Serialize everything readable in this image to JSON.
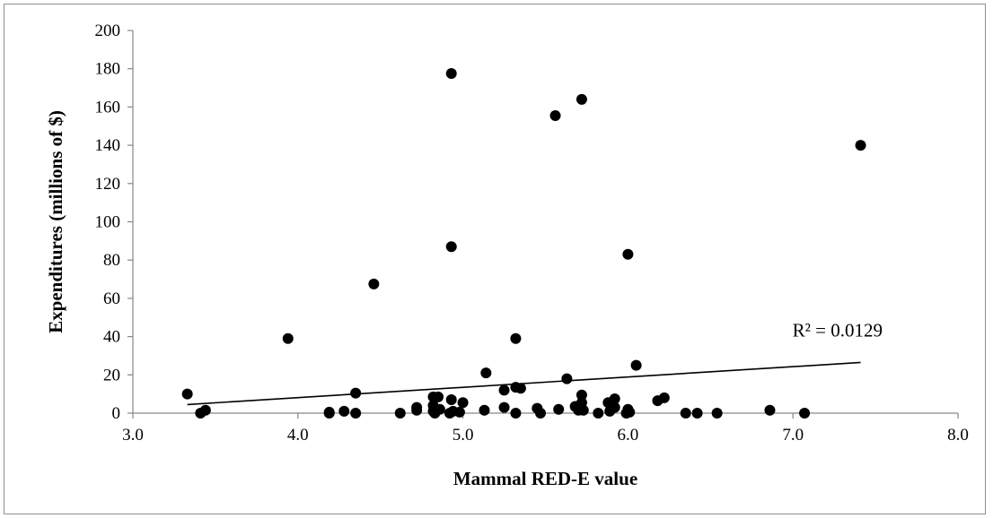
{
  "chart_data": {
    "type": "scatter",
    "xlabel": "Mammal RED-E value",
    "ylabel": "Expenditures (millions of $)",
    "xlim": [
      3.0,
      8.0
    ],
    "ylim": [
      0,
      200
    ],
    "x_ticks": [
      "3.0",
      "4.0",
      "5.0",
      "6.0",
      "7.0",
      "8.0"
    ],
    "y_ticks": [
      "0",
      "20",
      "40",
      "60",
      "80",
      "100",
      "120",
      "140",
      "160",
      "180",
      "200"
    ],
    "grid": false,
    "legend": false,
    "marker_color": "#000000",
    "points": [
      {
        "x": 3.33,
        "y": 10
      },
      {
        "x": 3.41,
        "y": 0
      },
      {
        "x": 3.44,
        "y": 1.5
      },
      {
        "x": 3.94,
        "y": 39
      },
      {
        "x": 4.19,
        "y": 0
      },
      {
        "x": 4.19,
        "y": 0.5
      },
      {
        "x": 4.28,
        "y": 1
      },
      {
        "x": 4.35,
        "y": 10.5
      },
      {
        "x": 4.35,
        "y": 0
      },
      {
        "x": 4.46,
        "y": 67.5
      },
      {
        "x": 4.62,
        "y": 0
      },
      {
        "x": 4.72,
        "y": 3
      },
      {
        "x": 4.72,
        "y": 1.5
      },
      {
        "x": 4.82,
        "y": 8.5
      },
      {
        "x": 4.82,
        "y": 4
      },
      {
        "x": 4.82,
        "y": 1
      },
      {
        "x": 4.83,
        "y": 0
      },
      {
        "x": 4.85,
        "y": 8.5
      },
      {
        "x": 4.86,
        "y": 2
      },
      {
        "x": 4.92,
        "y": 0
      },
      {
        "x": 4.93,
        "y": 177.5
      },
      {
        "x": 4.93,
        "y": 87
      },
      {
        "x": 4.93,
        "y": 7
      },
      {
        "x": 4.94,
        "y": 1
      },
      {
        "x": 4.98,
        "y": 0.5
      },
      {
        "x": 5.0,
        "y": 5.5
      },
      {
        "x": 5.13,
        "y": 1.5
      },
      {
        "x": 5.14,
        "y": 21
      },
      {
        "x": 5.25,
        "y": 12
      },
      {
        "x": 5.25,
        "y": 3
      },
      {
        "x": 5.32,
        "y": 39
      },
      {
        "x": 5.32,
        "y": 13.5
      },
      {
        "x": 5.32,
        "y": 0
      },
      {
        "x": 5.35,
        "y": 13
      },
      {
        "x": 5.45,
        "y": 2.5
      },
      {
        "x": 5.47,
        "y": 0
      },
      {
        "x": 5.56,
        "y": 155.5
      },
      {
        "x": 5.58,
        "y": 2
      },
      {
        "x": 5.63,
        "y": 18
      },
      {
        "x": 5.68,
        "y": 3.5
      },
      {
        "x": 5.7,
        "y": 1.5
      },
      {
        "x": 5.72,
        "y": 164
      },
      {
        "x": 5.72,
        "y": 9.5
      },
      {
        "x": 5.72,
        "y": 5.5
      },
      {
        "x": 5.73,
        "y": 1.5
      },
      {
        "x": 5.82,
        "y": 0
      },
      {
        "x": 5.88,
        "y": 5.5
      },
      {
        "x": 5.89,
        "y": 1
      },
      {
        "x": 5.92,
        "y": 7.5
      },
      {
        "x": 5.92,
        "y": 3
      },
      {
        "x": 5.99,
        "y": 0
      },
      {
        "x": 6.0,
        "y": 83
      },
      {
        "x": 6.0,
        "y": 2
      },
      {
        "x": 6.01,
        "y": 0.5
      },
      {
        "x": 6.05,
        "y": 25
      },
      {
        "x": 6.18,
        "y": 6.5
      },
      {
        "x": 6.22,
        "y": 8
      },
      {
        "x": 6.35,
        "y": 0
      },
      {
        "x": 6.42,
        "y": 0
      },
      {
        "x": 6.54,
        "y": 0
      },
      {
        "x": 6.86,
        "y": 1.5
      },
      {
        "x": 7.07,
        "y": 0
      },
      {
        "x": 7.41,
        "y": 140
      }
    ],
    "trendline": {
      "type": "linear",
      "x": [
        3.33,
        7.41
      ],
      "y": [
        4.5,
        26.5
      ]
    },
    "annotation": {
      "text": "R² = 0.0129",
      "x": 7.27,
      "y": 40
    }
  }
}
